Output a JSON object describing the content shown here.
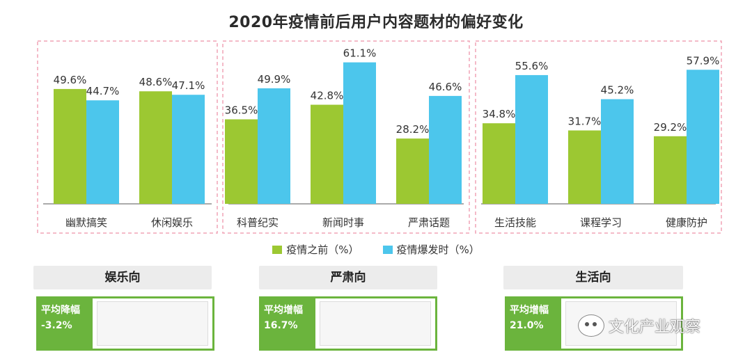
{
  "title": "2020年疫情前后用户内容题材的偏好变化",
  "chart_data": {
    "type": "bar",
    "title": "2020年疫情前后用户内容题材的偏好变化",
    "categories": [
      "幽默搞笑",
      "休闲娱乐",
      "科普纪实",
      "新闻时事",
      "严肃话题",
      "生活技能",
      "课程学习",
      "健康防护"
    ],
    "series": [
      {
        "name": "疫情之前（%）",
        "values": [
          49.6,
          48.6,
          36.5,
          42.8,
          28.2,
          34.8,
          31.7,
          29.2
        ],
        "color": "#9cc832"
      },
      {
        "name": "疫情爆发时（%）",
        "values": [
          44.7,
          47.1,
          49.9,
          61.1,
          46.6,
          55.6,
          45.2,
          57.9
        ],
        "color": "#4cc6ec"
      }
    ],
    "data_labels": [
      [
        "49.6%",
        "48.6%",
        "36.5%",
        "42.8%",
        "28.2%",
        "34.8%",
        "31.7%",
        "29.2%"
      ],
      [
        "44.7%",
        "47.1%",
        "49.9%",
        "61.1%",
        "46.6%",
        "55.6%",
        "45.2%",
        "57.9%"
      ]
    ],
    "ylim": [
      0,
      70
    ],
    "legend_position": "bottom",
    "grid": false
  },
  "legend": [
    {
      "label": "疫情之前（%）",
      "color": "#9cc832"
    },
    {
      "label": "疫情爆发时（%）",
      "color": "#4cc6ec"
    }
  ],
  "groups": [
    {
      "head": "娱乐向",
      "stat_label": "平均降幅",
      "stat_value": "-3.2%"
    },
    {
      "head": "严肃向",
      "stat_label": "平均增幅",
      "stat_value": "16.7%"
    },
    {
      "head": "生活向",
      "stat_label": "平均增幅",
      "stat_value": "21.0%"
    }
  ],
  "watermark": "文化产业观察"
}
